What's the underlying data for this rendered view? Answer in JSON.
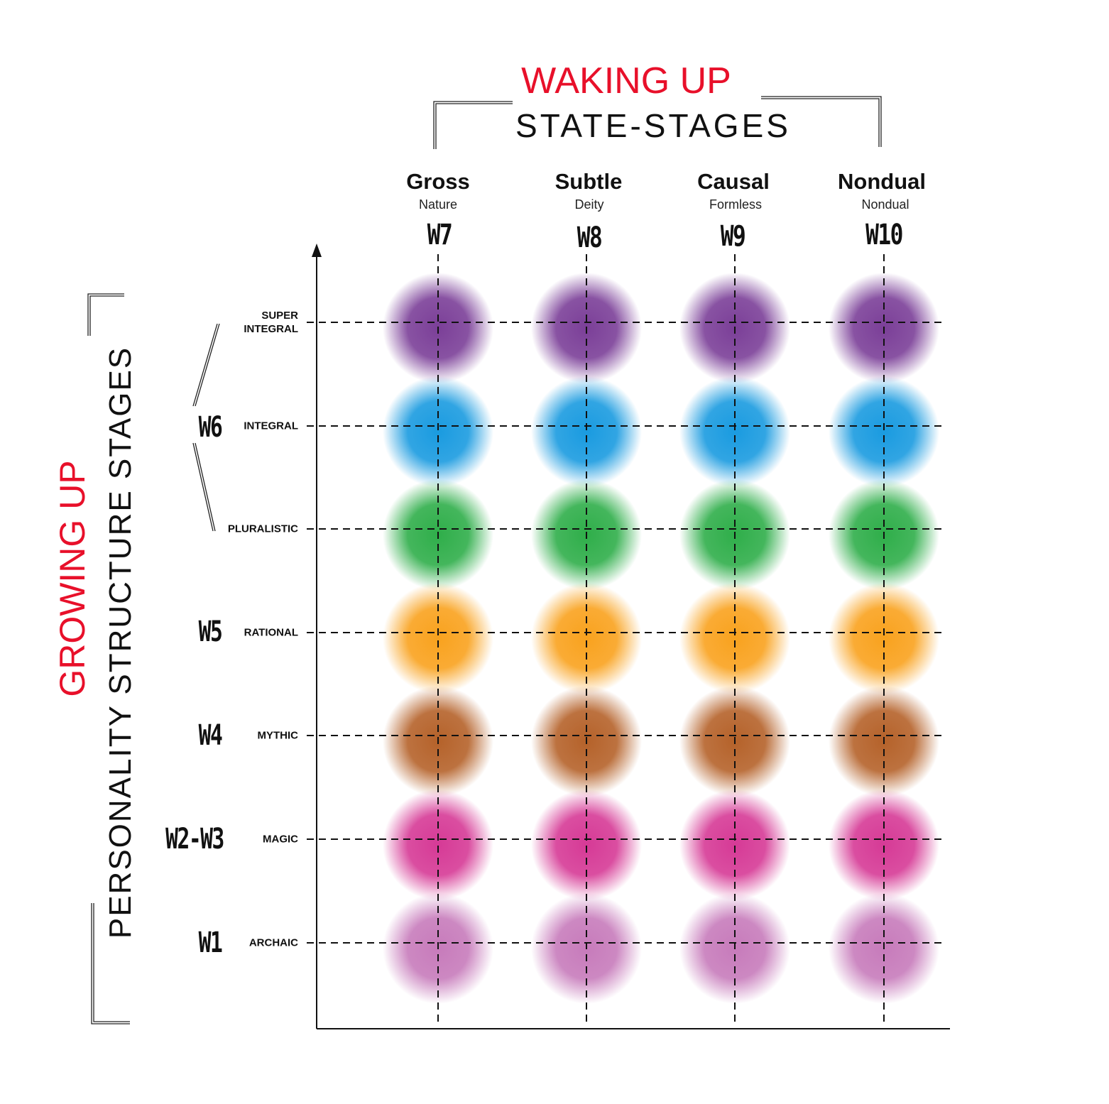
{
  "header": {
    "title_red": "WAKING UP",
    "title_black": "STATE-STAGES"
  },
  "side": {
    "title_red": "GROWING UP",
    "title_black": "PERSONALITY STRUCTURE STAGES"
  },
  "columns": [
    {
      "name": "Gross",
      "sub": "Nature",
      "code": "W7"
    },
    {
      "name": "Subtle",
      "sub": "Deity",
      "code": "W8"
    },
    {
      "name": "Causal",
      "sub": "Formless",
      "code": "W9"
    },
    {
      "name": "Nondual",
      "sub": "Nondual",
      "code": "W10"
    }
  ],
  "rows": [
    {
      "label": "SUPER\nINTEGRAL",
      "code": "",
      "color": "#7b3f98"
    },
    {
      "label": "INTEGRAL",
      "code": "",
      "color": "#1a9be0"
    },
    {
      "label": "PLURALISTIC",
      "code": "",
      "color": "#2fae4a"
    },
    {
      "label": "RATIONAL",
      "code": "W5",
      "color": "#f9a21e"
    },
    {
      "label": "MYTHIC",
      "code": "W4",
      "color": "#b5622a"
    },
    {
      "label": "MAGIC",
      "code": "W2-W3",
      "color": "#d63a96"
    },
    {
      "label": "ARCHAIC",
      "code": "W1",
      "color": "#c77bbb"
    }
  ],
  "group_code": "W6"
}
